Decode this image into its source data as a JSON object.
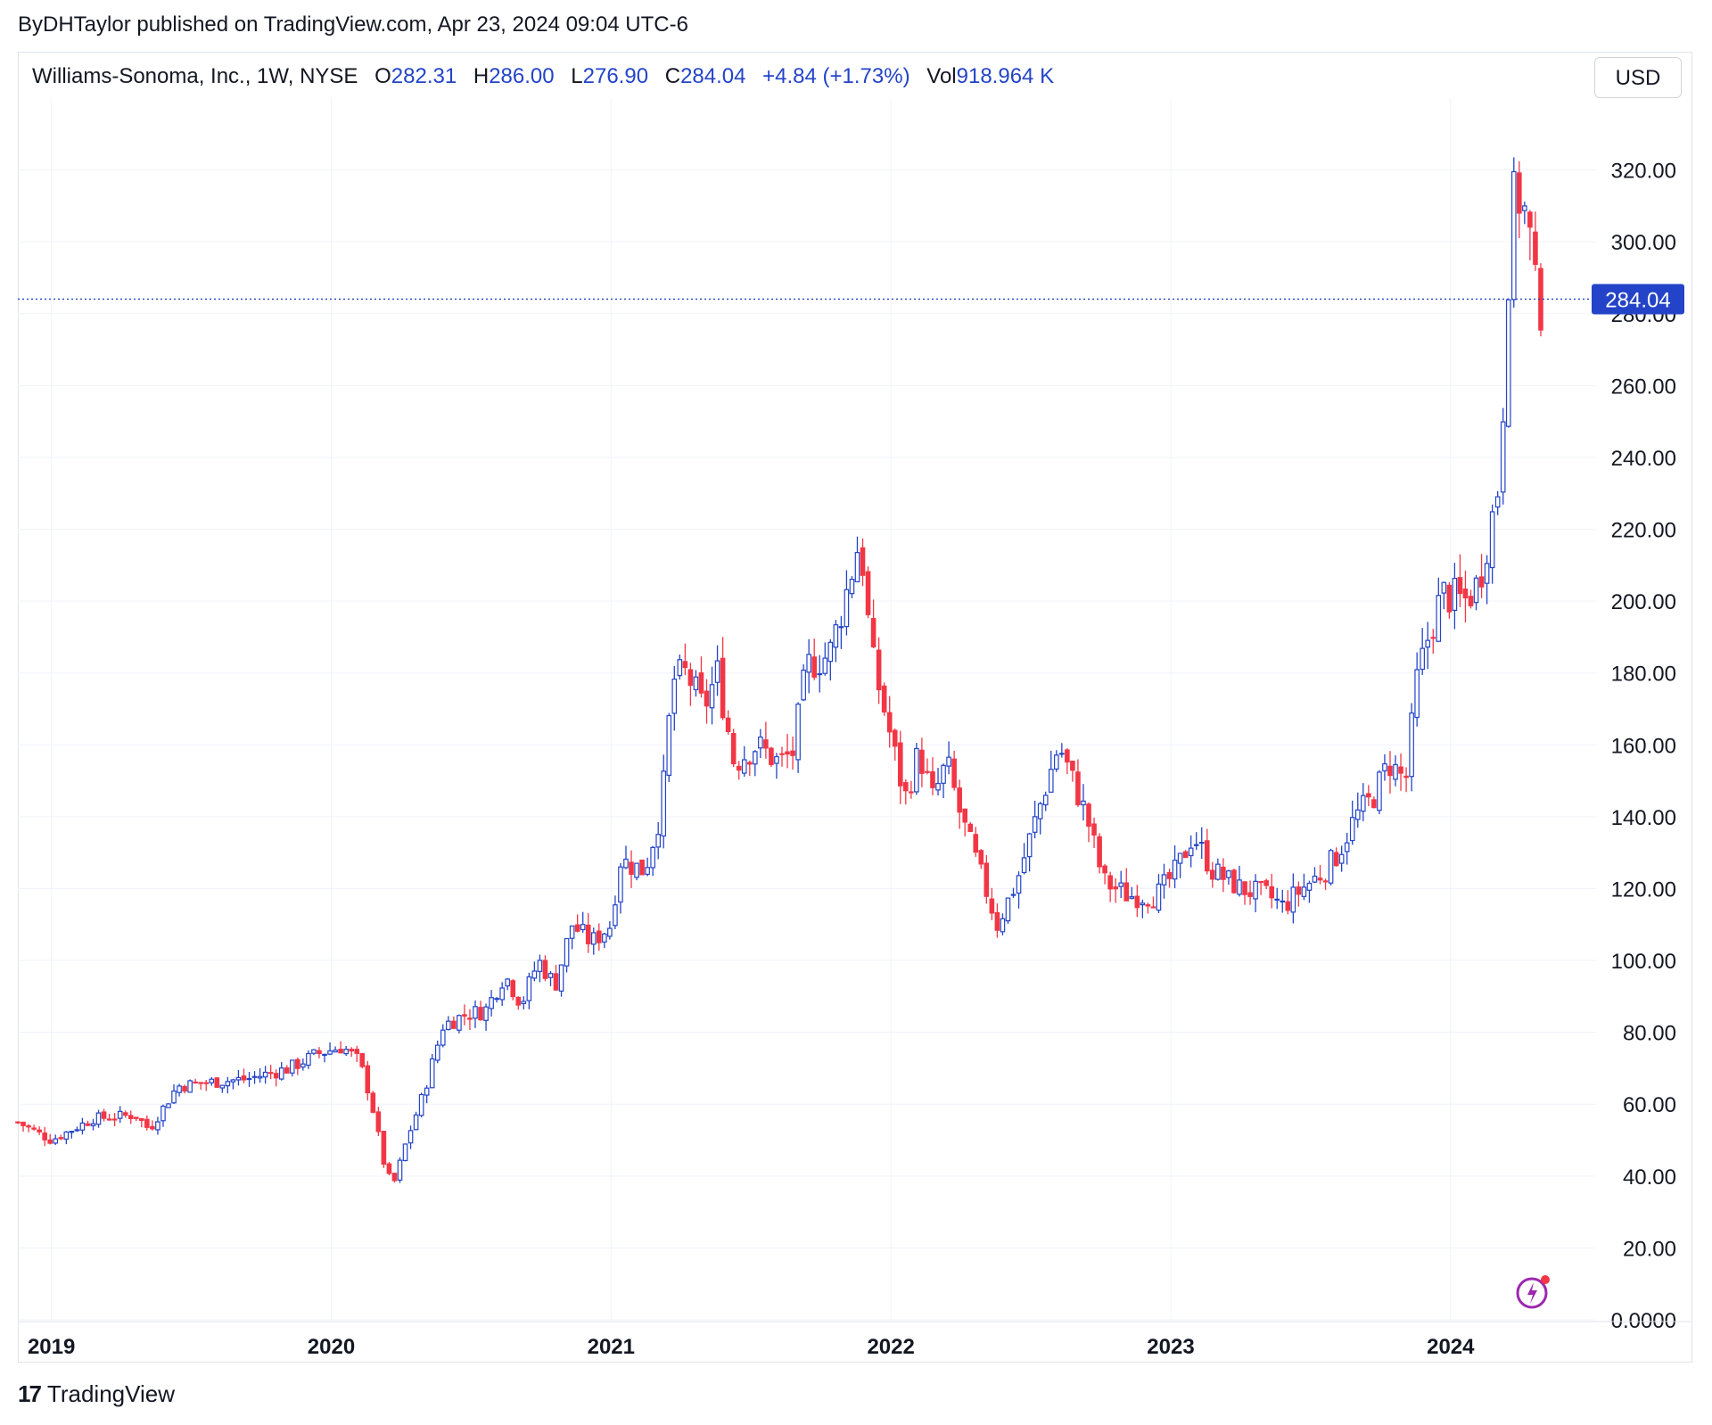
{
  "header": {
    "publisher": "ByDHTaylor published on TradingView.com, Apr 23, 2024 09:04 UTC-6"
  },
  "legend": {
    "symbol": "Williams-Sonoma, Inc., 1W, NYSE",
    "o_label": "O",
    "o_value": "282.31",
    "h_label": "H",
    "h_value": "286.00",
    "l_label": "L",
    "l_value": "276.90",
    "c_label": "C",
    "c_value": "284.04",
    "change": "+4.84 (+1.73%)",
    "vol_label": "Vol",
    "vol_value": "918.964 K"
  },
  "currency_button": "USD",
  "price_tag": "284.04",
  "footer": {
    "logo_text": "TradingView",
    "logo_mark": "17"
  },
  "colors": {
    "up": "#2344c8",
    "down": "#f23645",
    "grid": "#f0f3fa",
    "last_price": "#2344c8"
  },
  "chart_data": {
    "type": "candlestick",
    "timeframe": "1W",
    "ylim": [
      0,
      340
    ],
    "y_ticks": [
      0,
      20,
      40,
      60,
      80,
      100,
      120,
      140,
      160,
      180,
      200,
      220,
      240,
      260,
      280,
      300,
      320
    ],
    "y_tick_labels": [
      "0.0000",
      "20.00",
      "40.00",
      "60.00",
      "80.00",
      "100.00",
      "120.00",
      "140.00",
      "160.00",
      "180.00",
      "200.00",
      "220.00",
      "240.00",
      "260.00",
      "280.00",
      "300.00",
      "320.00"
    ],
    "x_range": [
      2018.88,
      2024.52
    ],
    "x_ticks": [
      2019,
      2020,
      2021,
      2022,
      2023,
      2024
    ],
    "x_tick_labels": [
      "2019",
      "2020",
      "2021",
      "2022",
      "2023",
      "2024"
    ],
    "last_price": 284.04,
    "close_path": [
      [
        2018.88,
        55
      ],
      [
        2019.0,
        50
      ],
      [
        2019.15,
        56
      ],
      [
        2019.3,
        57
      ],
      [
        2019.35,
        53
      ],
      [
        2019.45,
        65
      ],
      [
        2019.55,
        66
      ],
      [
        2019.7,
        67
      ],
      [
        2019.85,
        70
      ],
      [
        2019.95,
        74
      ],
      [
        2020.04,
        76
      ],
      [
        2020.1,
        72
      ],
      [
        2020.14,
        62
      ],
      [
        2020.19,
        43
      ],
      [
        2020.22,
        37
      ],
      [
        2020.27,
        50
      ],
      [
        2020.33,
        63
      ],
      [
        2020.4,
        82
      ],
      [
        2020.48,
        85
      ],
      [
        2020.55,
        86
      ],
      [
        2020.62,
        96
      ],
      [
        2020.68,
        88
      ],
      [
        2020.74,
        100
      ],
      [
        2020.8,
        93
      ],
      [
        2020.86,
        110
      ],
      [
        2020.93,
        105
      ],
      [
        2021.0,
        110
      ],
      [
        2021.03,
        128
      ],
      [
        2021.12,
        125
      ],
      [
        2021.18,
        142
      ],
      [
        2021.22,
        178
      ],
      [
        2021.27,
        180
      ],
      [
        2021.33,
        170
      ],
      [
        2021.38,
        180
      ],
      [
        2021.44,
        155
      ],
      [
        2021.52,
        160
      ],
      [
        2021.6,
        155
      ],
      [
        2021.65,
        158
      ],
      [
        2021.7,
        182
      ],
      [
        2021.78,
        185
      ],
      [
        2021.85,
        205
      ],
      [
        2021.89,
        218
      ],
      [
        2021.93,
        185
      ],
      [
        2022.0,
        162
      ],
      [
        2022.05,
        145
      ],
      [
        2022.1,
        158
      ],
      [
        2022.15,
        145
      ],
      [
        2022.2,
        155
      ],
      [
        2022.25,
        140
      ],
      [
        2022.33,
        122
      ],
      [
        2022.38,
        110
      ],
      [
        2022.45,
        122
      ],
      [
        2022.52,
        140
      ],
      [
        2022.6,
        160
      ],
      [
        2022.7,
        140
      ],
      [
        2022.76,
        122
      ],
      [
        2022.85,
        118
      ],
      [
        2022.95,
        118
      ],
      [
        2023.02,
        125
      ],
      [
        2023.08,
        135
      ],
      [
        2023.15,
        125
      ],
      [
        2023.25,
        120
      ],
      [
        2023.35,
        118
      ],
      [
        2023.4,
        115
      ],
      [
        2023.47,
        120
      ],
      [
        2023.55,
        125
      ],
      [
        2023.6,
        130
      ],
      [
        2023.66,
        140
      ],
      [
        2023.72,
        145
      ],
      [
        2023.78,
        155
      ],
      [
        2023.84,
        150
      ],
      [
        2023.88,
        178
      ],
      [
        2023.92,
        190
      ],
      [
        2023.97,
        202
      ],
      [
        2024.05,
        200
      ],
      [
        2024.1,
        205
      ],
      [
        2024.14,
        220
      ],
      [
        2024.18,
        236
      ],
      [
        2024.2,
        285
      ],
      [
        2024.23,
        315
      ],
      [
        2024.26,
        310
      ],
      [
        2024.29,
        298
      ],
      [
        2024.31,
        280
      ],
      [
        2024.33,
        284
      ]
    ]
  }
}
